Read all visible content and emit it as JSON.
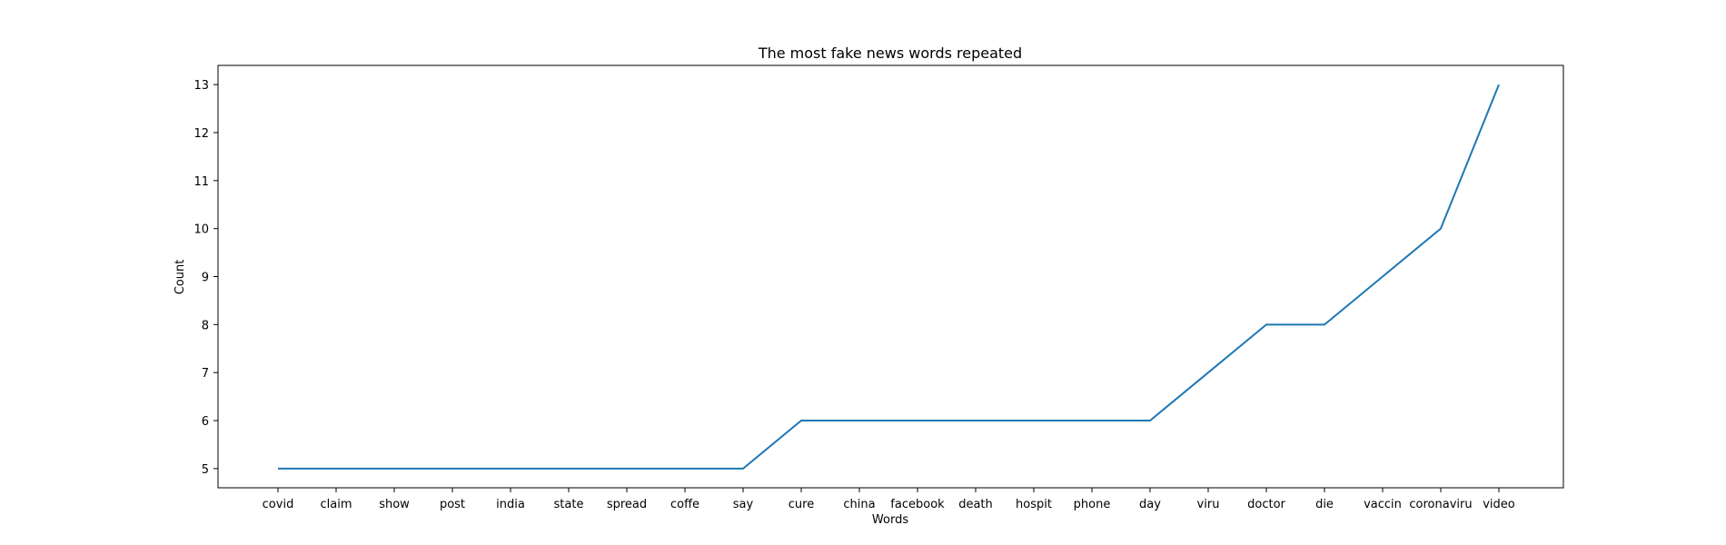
{
  "chart_data": {
    "type": "line",
    "title": "The most fake news words repeated",
    "xlabel": "Words",
    "ylabel": "Count",
    "categories": [
      "covid",
      "claim",
      "show",
      "post",
      "india",
      "state",
      "spread",
      "coffe",
      "say",
      "cure",
      "china",
      "facebook",
      "death",
      "hospit",
      "phone",
      "day",
      "viru",
      "doctor",
      "die",
      "vaccin",
      "coronaviru",
      "video"
    ],
    "values": [
      5,
      5,
      5,
      5,
      5,
      5,
      5,
      5,
      5,
      6,
      6,
      6,
      6,
      6,
      6,
      6,
      7,
      8,
      8,
      9,
      10,
      13
    ],
    "ylim": [
      4.6,
      13.4
    ],
    "yticks": [
      5,
      6,
      7,
      8,
      9,
      10,
      11,
      12,
      13
    ],
    "grid": false,
    "line_color": "#1f77b4"
  }
}
